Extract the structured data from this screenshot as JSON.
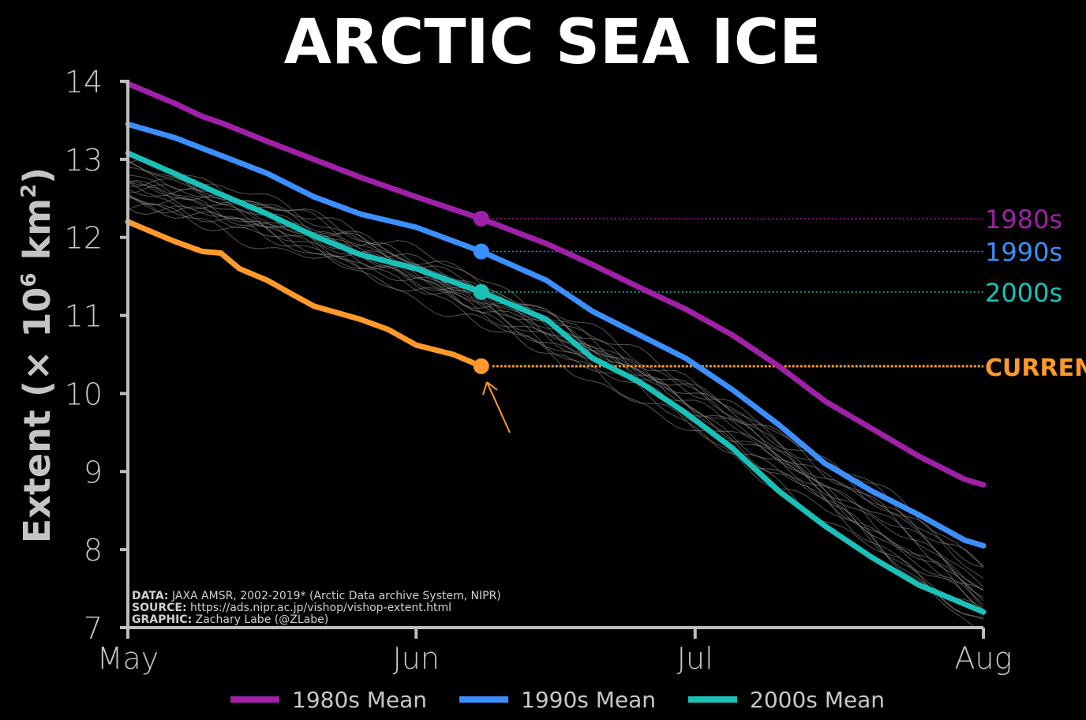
{
  "chart_data": {
    "type": "line",
    "title": "ARCTIC SEA ICE",
    "ylabel_main": "Extent (× 10",
    "ylabel_exp": "6",
    "ylabel_unit": " km",
    "ylabel_unit_exp": "2",
    "ylabel_close": ")",
    "xlabel": "",
    "ylim": [
      7,
      14
    ],
    "yticks": [
      7,
      8,
      9,
      10,
      11,
      12,
      13,
      14
    ],
    "xlim": [
      0,
      92
    ],
    "xticks": [
      {
        "x": 0,
        "label": "May"
      },
      {
        "x": 31,
        "label": "Jun"
      },
      {
        "x": 61,
        "label": "Jul"
      },
      {
        "x": 92,
        "label": "Aug"
      }
    ],
    "current_day": 38,
    "series": [
      {
        "name": "1980s Mean",
        "end_label": "1980s",
        "color": "#a020a8",
        "key": "s1980",
        "x": [
          0,
          5,
          8,
          10,
          15,
          20,
          25,
          31,
          38,
          45,
          50,
          55,
          60,
          65,
          70,
          75,
          80,
          85,
          90,
          92
        ],
        "values": [
          13.97,
          13.72,
          13.55,
          13.47,
          13.23,
          13.0,
          12.77,
          12.52,
          12.24,
          11.92,
          11.65,
          11.36,
          11.08,
          10.75,
          10.35,
          9.9,
          9.55,
          9.2,
          8.9,
          8.83
        ]
      },
      {
        "name": "1990s Mean",
        "end_label": "1990s",
        "color": "#3b8fff",
        "key": "s1990",
        "x": [
          0,
          5,
          10,
          15,
          20,
          25,
          31,
          38,
          45,
          50,
          55,
          60,
          65,
          70,
          75,
          80,
          85,
          90,
          92
        ],
        "values": [
          13.45,
          13.28,
          13.05,
          12.82,
          12.52,
          12.3,
          12.13,
          11.82,
          11.45,
          11.05,
          10.75,
          10.45,
          10.05,
          9.6,
          9.1,
          8.75,
          8.45,
          8.12,
          8.05
        ]
      },
      {
        "name": "2000s Mean",
        "end_label": "2000s",
        "color": "#19c1b8",
        "key": "s2000",
        "x": [
          0,
          5,
          10,
          15,
          20,
          25,
          31,
          38,
          45,
          50,
          55,
          60,
          65,
          70,
          75,
          80,
          85,
          90,
          92
        ],
        "values": [
          13.08,
          12.82,
          12.55,
          12.3,
          12.02,
          11.78,
          11.6,
          11.3,
          10.95,
          10.45,
          10.15,
          9.75,
          9.3,
          8.75,
          8.3,
          7.9,
          7.55,
          7.3,
          7.2
        ]
      },
      {
        "name": "CURRENT",
        "end_label": "CURRENT",
        "color": "#ff9a2a",
        "key": "current",
        "x": [
          0,
          3,
          5,
          8,
          10,
          12,
          15,
          18,
          20,
          25,
          28,
          31,
          35,
          38
        ],
        "values": [
          12.2,
          12.05,
          11.95,
          11.82,
          11.8,
          11.6,
          11.45,
          11.25,
          11.12,
          10.95,
          10.82,
          10.62,
          10.5,
          10.35
        ]
      }
    ],
    "background_years_color": "#8c8c8c",
    "credits": [
      {
        "label": "DATA:",
        "text": " JAXA AMSR, 2002-2019* (Arctic Data archive System, NIPR)"
      },
      {
        "label": "SOURCE:",
        "text": " https://ads.nipr.ac.jp/vishop/vishop-extent.html"
      },
      {
        "label": "GRAPHIC:",
        "text": " Zachary Labe (@ZLabe)"
      }
    ],
    "legend": [
      {
        "label": "1980s Mean",
        "color": "#a020a8"
      },
      {
        "label": "1990s Mean",
        "color": "#3b8fff"
      },
      {
        "label": "2000s Mean",
        "color": "#19c1b8"
      }
    ],
    "legend_placement": "bottom"
  }
}
